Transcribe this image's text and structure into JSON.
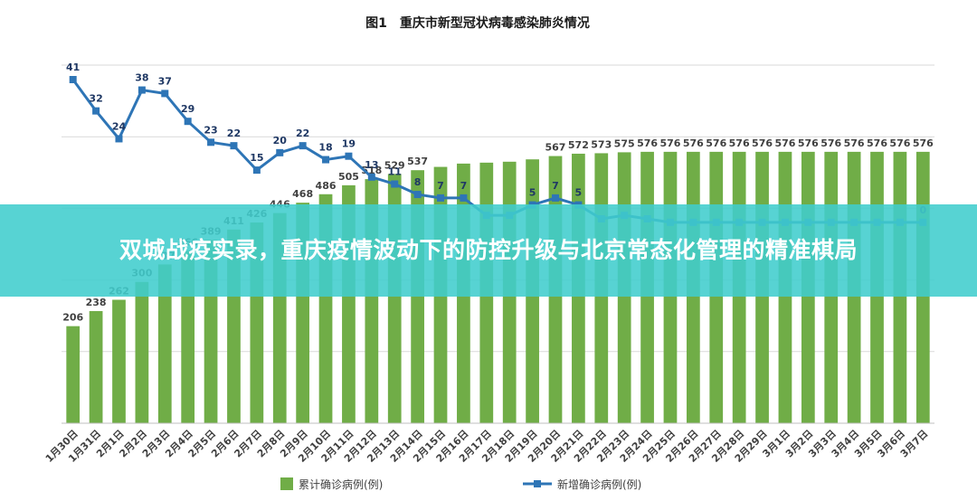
{
  "banner": {
    "headline": "双城战疫实录，重庆疫情波动下的防控升级与北京常态化管理的精准棋局"
  },
  "colors": {
    "bar": "#70ad47",
    "line": "#2e75b6",
    "label_bar": "#404040",
    "label_line": "#1f3864",
    "banner_bg": "#40cdcd"
  },
  "chart_data": {
    "type": "bar",
    "title": "图1　重庆市新型冠状病毒感染肺炎情况",
    "categories": [
      "1月30日",
      "1月31日",
      "2月1日",
      "2月2日",
      "2月3日",
      "2月4日",
      "2月5日",
      "2月6日",
      "2月7日",
      "2月8日",
      "2月9日",
      "2月10日",
      "2月11日",
      "2月12日",
      "2月13日",
      "2月14日",
      "2月15日",
      "2月16日",
      "2月17日",
      "2月18日",
      "2月19日",
      "2月20日",
      "2月21日",
      "2月22日",
      "2月23日",
      "2月24日",
      "2月25日",
      "2月26日",
      "2月27日",
      "2月28日",
      "2月29日",
      "3月1日",
      "3月2日",
      "3月3日",
      "3月4日",
      "3月5日",
      "3月6日",
      "3月7日"
    ],
    "series": [
      {
        "name": "累计确诊病例(例)",
        "type": "bar",
        "values": [
          206,
          238,
          262,
          300,
          337,
          366,
          389,
          411,
          426,
          446,
          468,
          486,
          505,
          518,
          529,
          537,
          544,
          551,
          553,
          555,
          560,
          567,
          572,
          573,
          575,
          576,
          576,
          576,
          576,
          576,
          576,
          576,
          576,
          576,
          576,
          576,
          576,
          576
        ]
      },
      {
        "name": "新增确诊病例(例)",
        "type": "line",
        "values": [
          41,
          32,
          24,
          38,
          37,
          29,
          23,
          22,
          15,
          20,
          22,
          18,
          19,
          13,
          11,
          8,
          7,
          7,
          2,
          2,
          5,
          7,
          5,
          1,
          2,
          1,
          0,
          0,
          0,
          0,
          0,
          0,
          0,
          0,
          0,
          0,
          0,
          0
        ]
      }
    ],
    "visible_bar_labels": [
      206,
      238,
      262,
      300,
      337,
      366,
      389,
      411,
      426,
      446,
      468,
      486,
      505,
      518,
      529,
      537
    ],
    "visible_bar_labels_right": [
      567,
      572,
      573,
      575,
      576,
      576,
      576,
      576,
      576,
      576,
      576,
      576,
      576,
      576,
      576,
      576,
      576
    ],
    "visible_line_labels": [
      41,
      32,
      24,
      38,
      37,
      29,
      23,
      22,
      15,
      20,
      22,
      18,
      19,
      13,
      11,
      8,
      7,
      7
    ],
    "visible_line_labels_right": [
      5,
      7,
      5
    ],
    "visible_line_label_last": 0,
    "legend_position": "bottom",
    "grid": true
  }
}
